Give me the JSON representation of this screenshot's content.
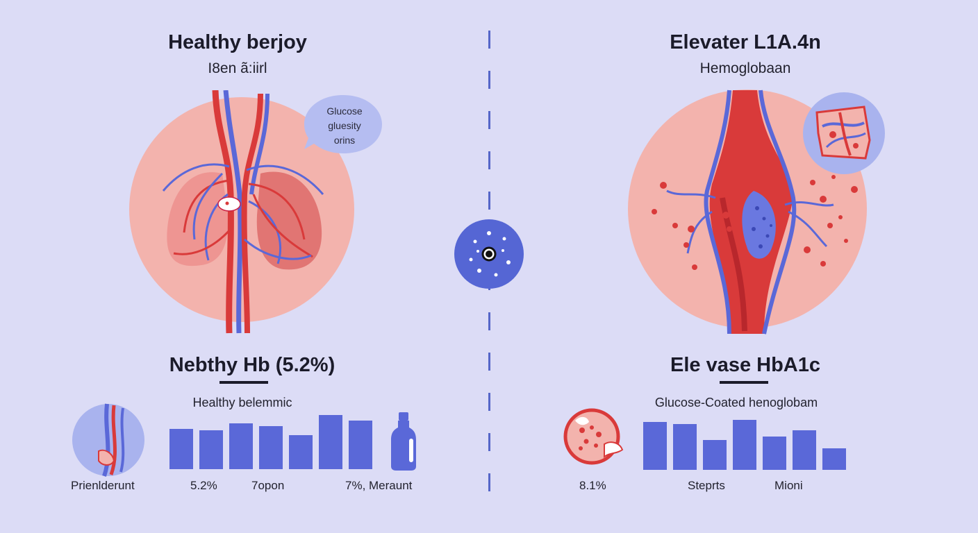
{
  "left": {
    "title": "Healthy berjoy",
    "subtitle": "I8en ã:iirl",
    "bubble": {
      "line1": "Glucose",
      "line2": "gluesity",
      "line3": "orins"
    },
    "heading": "Nebthy Hb (5.2%)",
    "caption": "Healthy belemmic",
    "labels": {
      "a": "Prienlderunt",
      "b": "5.2%",
      "c": "7opon",
      "d": "7%, Meraunt"
    },
    "bars": [
      0.58,
      0.56,
      0.66,
      0.62,
      0.49,
      0.78,
      0.7
    ]
  },
  "right": {
    "title": "Elevater L1A.4n",
    "subtitle": "Hemoglobaan",
    "heading": "Ele vase HbA1c",
    "caption": "Glucose-Coated henoglobam",
    "labels": {
      "a": "8.1%",
      "b": "Steprts",
      "c": "Mioni"
    },
    "bars": [
      0.6,
      0.58,
      0.38,
      0.63,
      0.42,
      0.5,
      0.27
    ]
  },
  "colors": {
    "background": "#dcdcf6",
    "accent_blue": "#5a68d8",
    "vessel_red": "#d93a3a",
    "circle_pink": "#f3b3ad"
  }
}
